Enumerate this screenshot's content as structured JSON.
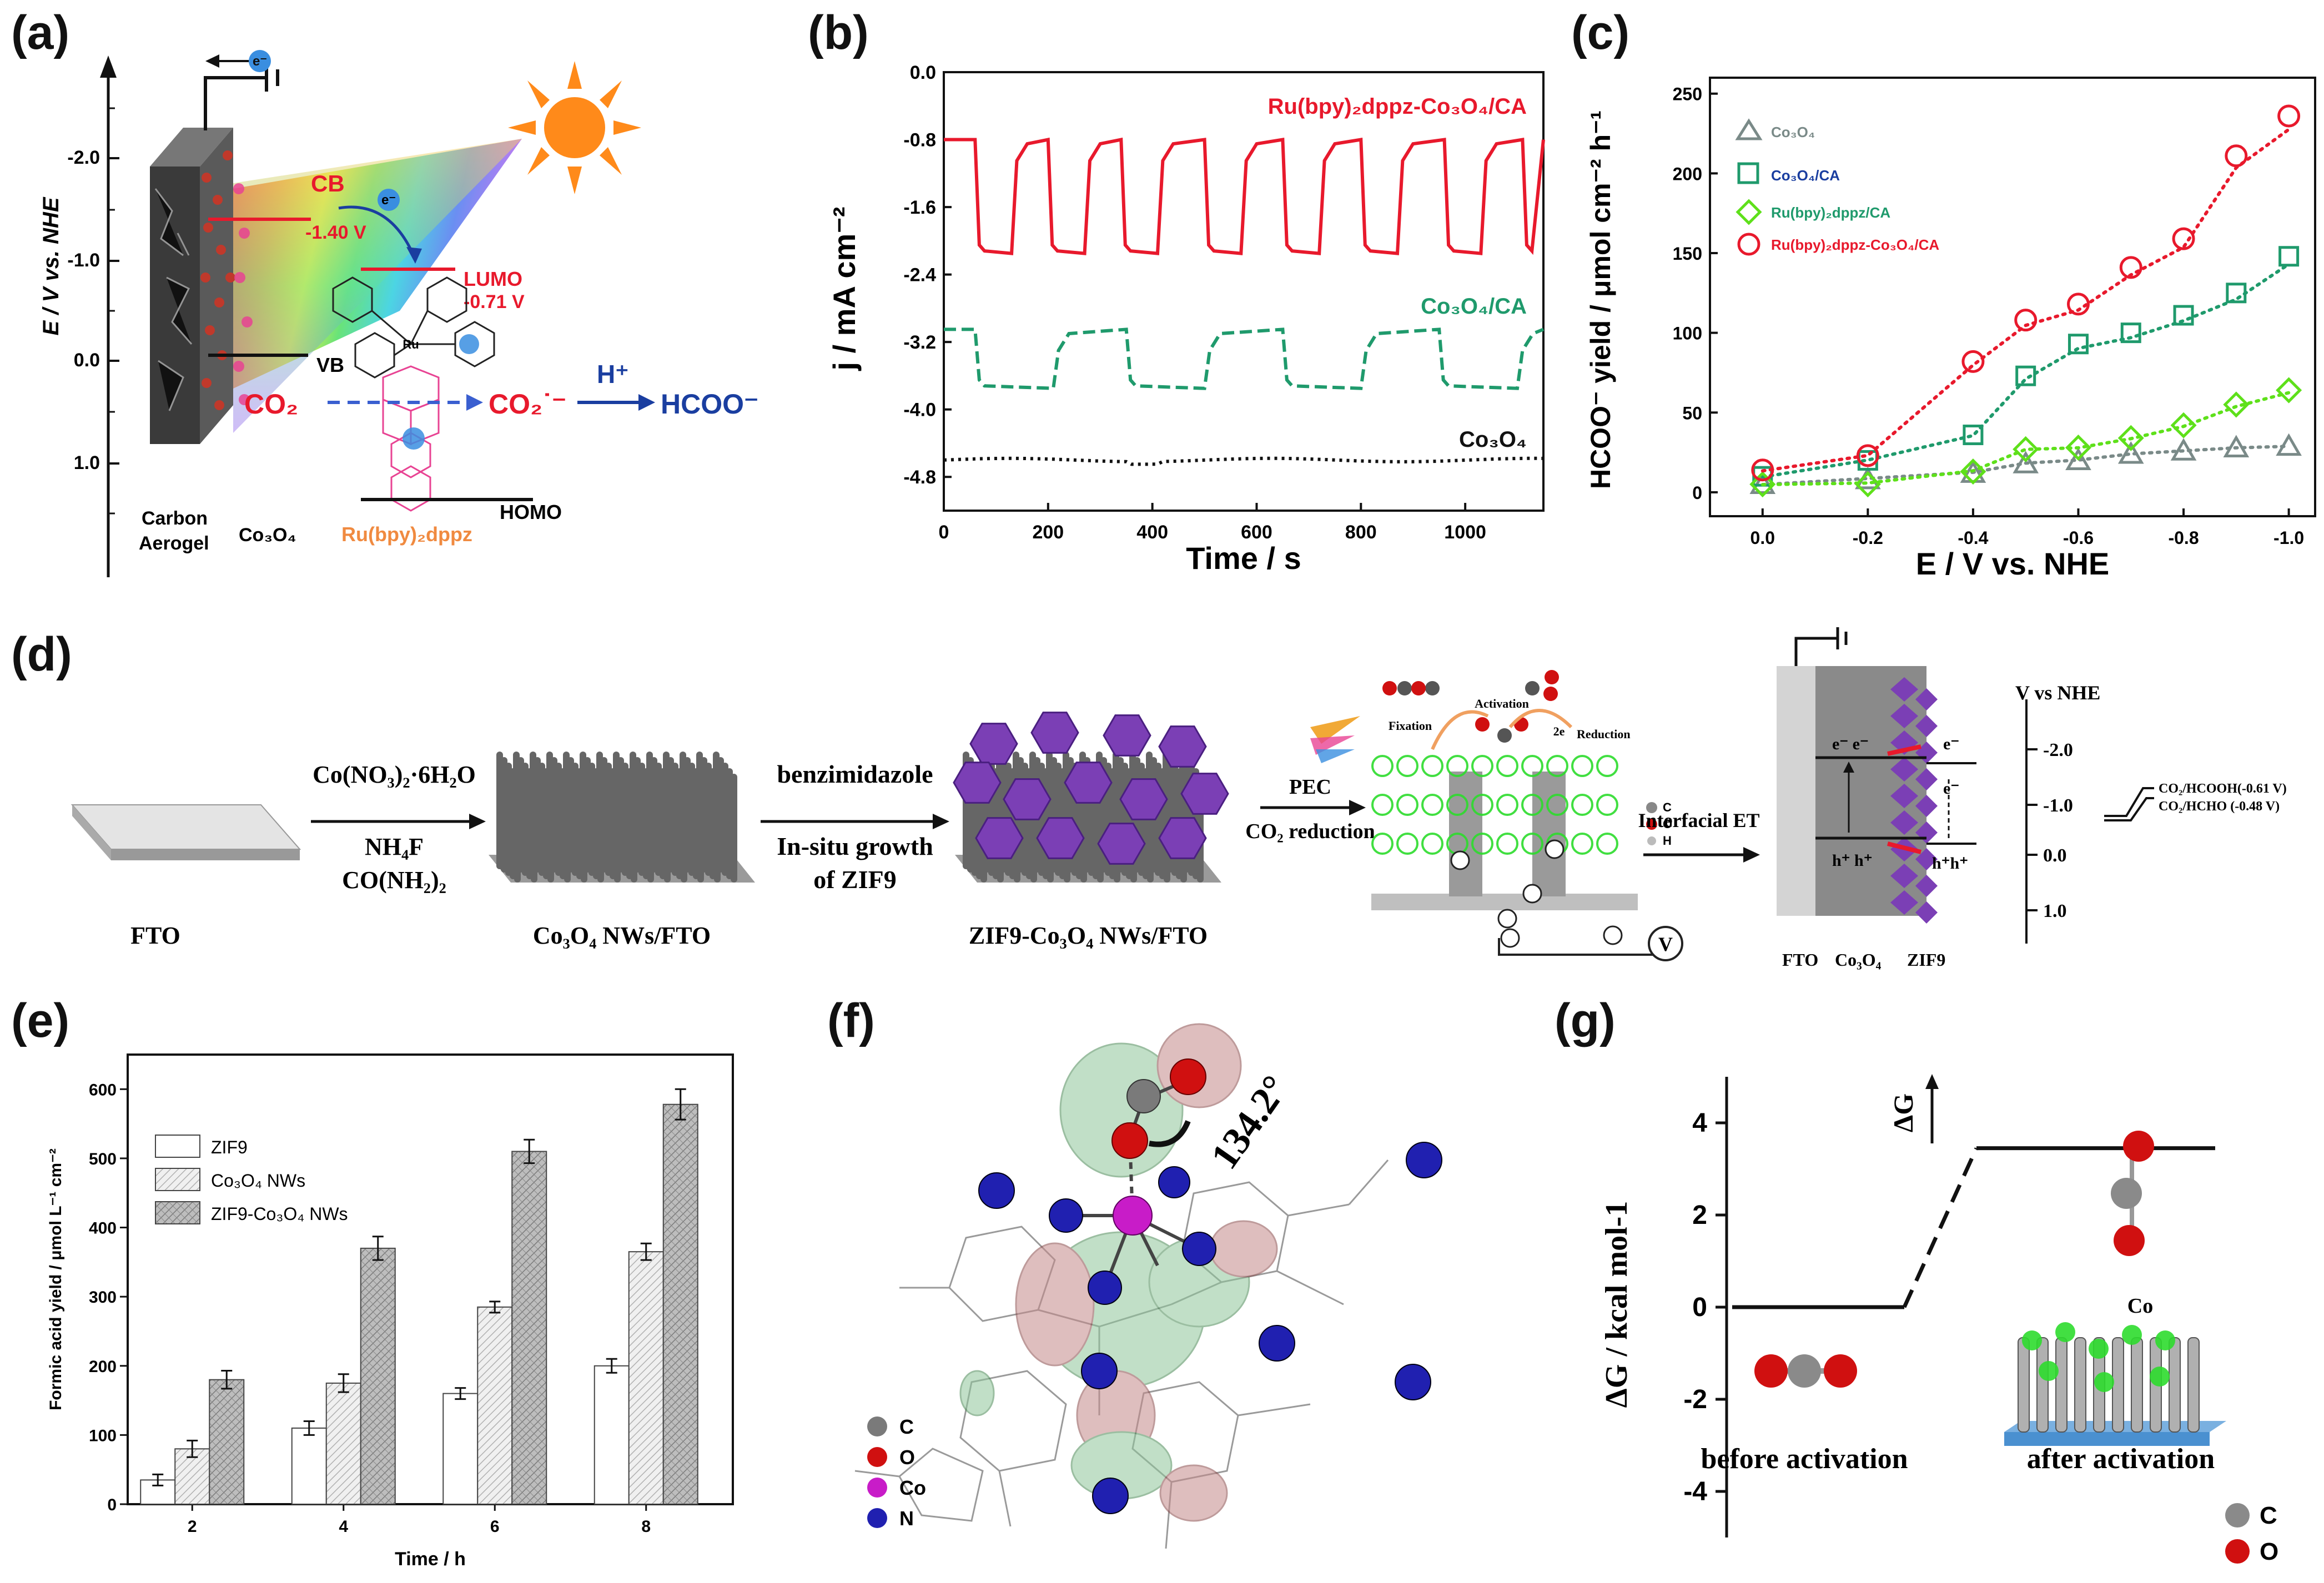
{
  "panel_labels": {
    "a": "(a)",
    "b": "(b)",
    "c": "(c)",
    "d": "(d)",
    "e": "(e)",
    "f": "(f)",
    "g": "(g)"
  },
  "panel_a": {
    "ylabel": "E / V vs. NHE",
    "ticks": [
      "-2.0",
      "-1.0",
      "0.0",
      "1.0"
    ],
    "electron": "e⁻",
    "cb": "CB",
    "cb_value": "-1.40 V",
    "lumo": "LUMO",
    "lumo_value": "-0.71 V",
    "vb": "VB",
    "homo": "HOMO",
    "co2": "CO₂",
    "co2_radical": "CO₂˙⁻",
    "proton": "H⁺",
    "product": "HCOO⁻",
    "carbon_aerogel": [
      "Carbon",
      "Aerogel"
    ],
    "co3o4": "Co₃O₄",
    "dye": "Ru(bpy)₂dppz",
    "ru": "Ru"
  },
  "chart_data": [
    {
      "id": "b",
      "type": "line",
      "title": "",
      "xlabel": "Time / s",
      "ylabel": "j / mA cm⁻²",
      "xlim": [
        0,
        1150
      ],
      "ylim": [
        -5.2,
        0.0
      ],
      "xticks": [
        0,
        200,
        400,
        600,
        800,
        1000
      ],
      "yticks": [
        0.0,
        -0.8,
        -1.6,
        -2.4,
        -3.2,
        -4.0,
        -4.8
      ],
      "series": [
        {
          "name": "Ru(bpy)₂dppz-Co₃O₄/CA",
          "color": "#e8192c",
          "style": "solid",
          "light": -0.8,
          "dark": -2.15,
          "on_starts": [
            60,
            200,
            340,
            500,
            650,
            800,
            960,
            1110
          ],
          "period_on": 70
        },
        {
          "name": "Co₃O₄/CA",
          "color": "#1f9a6c",
          "style": "dashed",
          "light": -3.05,
          "dark": -3.75,
          "on_starts": [
            60,
            350,
            650,
            950
          ],
          "period_on": 150
        },
        {
          "name": "Co₃O₄",
          "color": "#111111",
          "style": "dotted",
          "light": -4.6,
          "dark": -4.63,
          "on_starts": [],
          "period_on": 0
        }
      ]
    },
    {
      "id": "c",
      "type": "scatter",
      "title": "",
      "xlabel": "E / V vs. NHE",
      "ylabel": "HCOO⁻ yield / μmol cm⁻² h⁻¹",
      "x": [
        0.0,
        -0.2,
        -0.4,
        -0.5,
        -0.6,
        -0.7,
        -0.8,
        -0.9,
        -1.0
      ],
      "xticks": [
        "0.0",
        "-0.2",
        "-0.4",
        "-0.6",
        "-0.8",
        "-1.0"
      ],
      "xtick_values": [
        0.0,
        -0.2,
        -0.4,
        -0.6,
        -0.8,
        -1.0
      ],
      "xlim": [
        0.1,
        -1.05
      ],
      "ylim": [
        -15,
        260
      ],
      "yticks": [
        0,
        50,
        100,
        150,
        200,
        250
      ],
      "legend_position": "top-left",
      "series": [
        {
          "name": "Co₃O₄",
          "color": "#7a8a88",
          "marker": "triangle",
          "values": [
            5,
            8,
            12,
            18,
            20,
            24,
            26,
            28,
            29
          ]
        },
        {
          "name": "Co₃O₄/CA",
          "color": "#1f9a6c",
          "marker": "square",
          "values": [
            10,
            20,
            36,
            73,
            93,
            100,
            111,
            125,
            148
          ]
        },
        {
          "name": "Ru(bpy)₂dppz/CA",
          "color": "#5ee01a",
          "marker": "diamond",
          "values": [
            5,
            5,
            13,
            27,
            28,
            34,
            42,
            55,
            64
          ]
        },
        {
          "name": "Ru(bpy)₂dppz-Co₃O₄/CA",
          "color": "#e8192c",
          "marker": "circle",
          "values": [
            14,
            23,
            82,
            108,
            118,
            141,
            159,
            211,
            236
          ]
        }
      ]
    },
    {
      "id": "e",
      "type": "bar",
      "title": "",
      "xlabel": "Time / h",
      "ylabel": "Formic acid yield / μmol L⁻¹ cm⁻²",
      "categories": [
        "2",
        "4",
        "6",
        "8"
      ],
      "ylim": [
        0,
        650
      ],
      "yticks": [
        0,
        100,
        200,
        300,
        400,
        500,
        600
      ],
      "legend_position": "top-left",
      "series": [
        {
          "name": "ZIF9",
          "values": [
            35,
            110,
            160,
            200
          ],
          "errors": [
            8,
            10,
            8,
            10
          ]
        },
        {
          "name": "Co₃O₄ NWs",
          "values": [
            80,
            175,
            285,
            365
          ],
          "errors": [
            12,
            13,
            8,
            12
          ]
        },
        {
          "name": "ZIF9-Co₃O₄ NWs",
          "values": [
            180,
            370,
            510,
            578
          ],
          "errors": [
            13,
            17,
            17,
            22
          ]
        }
      ]
    },
    {
      "id": "g",
      "type": "line",
      "title": "",
      "xlabel": "",
      "ylabel": "ΔG / kcal mol-1",
      "ylim": [
        -5,
        5
      ],
      "yticks": [
        4,
        2,
        0,
        -2,
        -4
      ],
      "series": [
        {
          "name": "free energy path",
          "levels": [
            0,
            3.45
          ]
        }
      ],
      "annotations": [
        "ΔG",
        "before activation",
        "after activation",
        "Co"
      ],
      "legend": [
        "C",
        "O"
      ]
    }
  ],
  "panel_d": {
    "fto": "FTO",
    "step1_top": "Co(NO₃)₂·6H₂O",
    "step1_bottom_1": "NH₄F",
    "step1_bottom_2": "CO(NH₂)₂",
    "co3o4_label": "Co₃O₄ NWs/FTO",
    "step2_top": "benzimidazole",
    "step2_bottom_1": "In-situ growth",
    "step2_bottom_2": "of ZIF9",
    "zif_label": "ZIF9-Co₃O₄ NWs/FTO",
    "pec": "PEC",
    "co2_reduction": "CO₂ reduction",
    "fixation": "Fixation",
    "activation": "Activation",
    "reduction": "Reduction",
    "two_e": "2e",
    "legend": [
      "C",
      "O",
      "H"
    ],
    "v": "V",
    "interfacial": "Interfacial ET",
    "v_vs_nhe": "V vs NHE",
    "scale": [
      "-2.0",
      "-1.0",
      "0.0",
      "1.0"
    ],
    "redox_1": "CO₂/HCOOH(-0.61 V)",
    "redox_2": "CO₂/HCHO (-0.48 V)",
    "layers": [
      "FTO",
      "Co₃O₄",
      "ZIF9"
    ],
    "e_pair": "e⁻ e⁻",
    "h_pair": "h⁺ h⁺",
    "h_pair2": "h⁺h⁺",
    "e_single": "e⁻"
  },
  "panel_f": {
    "angle": "134.2°",
    "legend": [
      "C",
      "O",
      "Co",
      "N"
    ]
  }
}
